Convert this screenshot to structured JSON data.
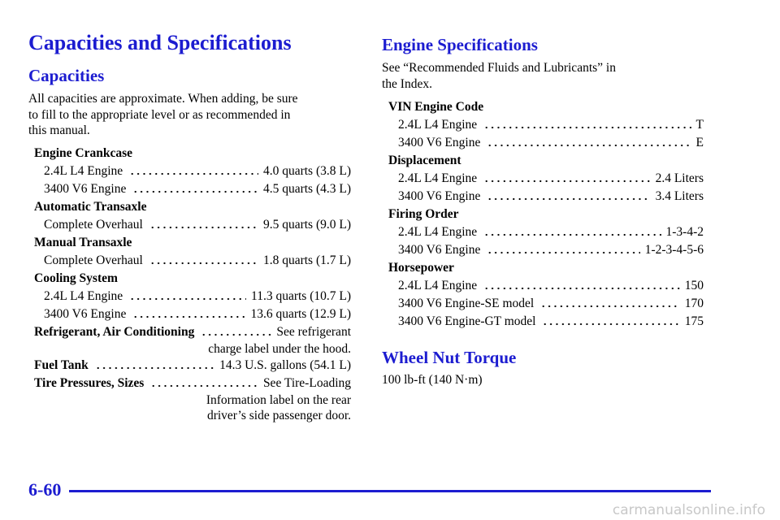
{
  "title": "Capacities and Specifications",
  "capacities": {
    "heading": "Capacities",
    "intro": [
      "All capacities are approximate. When adding, be sure",
      "to fill to the appropriate level or as recommended in",
      "this manual."
    ],
    "groups": [
      {
        "label": "Engine Crankcase",
        "items": [
          {
            "name": "2.4L L4 Engine",
            "value": [
              "4.0 quarts (3.8 L)"
            ]
          },
          {
            "name": "3400 V6 Engine",
            "value": [
              "4.5 quarts (4.3 L)"
            ]
          }
        ]
      },
      {
        "label": "Automatic Transaxle",
        "items": [
          {
            "name": "Complete Overhaul",
            "value": [
              "9.5 quarts (9.0 L)"
            ]
          }
        ]
      },
      {
        "label": "Manual Transaxle",
        "items": [
          {
            "name": "Complete Overhaul",
            "value": [
              "1.8 quarts (1.7 L)"
            ]
          }
        ]
      },
      {
        "label": "Cooling System",
        "items": [
          {
            "name": "2.4L L4 Engine",
            "value": [
              "11.3 quarts (10.7 L)"
            ]
          },
          {
            "name": "3400 V6 Engine",
            "value": [
              "13.6 quarts (12.9 L)"
            ]
          }
        ]
      },
      {
        "label": "Refrigerant, Air Conditioning",
        "value": [
          "See refrigerant",
          "charge label under the hood."
        ]
      },
      {
        "label": "Fuel Tank",
        "value": [
          "14.3 U.S. gallons (54.1 L)"
        ]
      },
      {
        "label": "Tire Pressures, Sizes",
        "value": [
          "See Tire-Loading",
          "Information label on the rear",
          "driver’s side passenger door."
        ]
      }
    ]
  },
  "engine_specifications": {
    "heading": "Engine Specifications",
    "intro": [
      "See “Recommended Fluids and Lubricants” in",
      "the Index."
    ],
    "groups": [
      {
        "label": "VIN Engine Code",
        "items": [
          {
            "name": "2.4L L4 Engine",
            "value": [
              "T"
            ]
          },
          {
            "name": "3400 V6 Engine",
            "value": [
              "E"
            ]
          }
        ]
      },
      {
        "label": "Displacement",
        "items": [
          {
            "name": "2.4L L4 Engine",
            "value": [
              "2.4 Liters"
            ]
          },
          {
            "name": "3400 V6 Engine",
            "value": [
              "3.4 Liters"
            ]
          }
        ]
      },
      {
        "label": "Firing Order",
        "items": [
          {
            "name": "2.4L L4 Engine",
            "value": [
              "1-3-4-2"
            ]
          },
          {
            "name": "3400 V6 Engine",
            "value": [
              "1-2-3-4-5-6"
            ]
          }
        ]
      },
      {
        "label": "Horsepower",
        "items": [
          {
            "name": "2.4L L4 Engine",
            "value": [
              "150"
            ]
          },
          {
            "name": "3400 V6 Engine-SE model",
            "value": [
              "170"
            ]
          },
          {
            "name": "3400 V6 Engine-GT model",
            "value": [
              "175"
            ]
          }
        ]
      }
    ]
  },
  "wheel_nut_torque": {
    "heading": "Wheel Nut Torque",
    "text": "100 lb-ft (140 N·m)"
  },
  "footer": {
    "page_number": "6-60",
    "watermark": "carmanualsonline.info"
  }
}
